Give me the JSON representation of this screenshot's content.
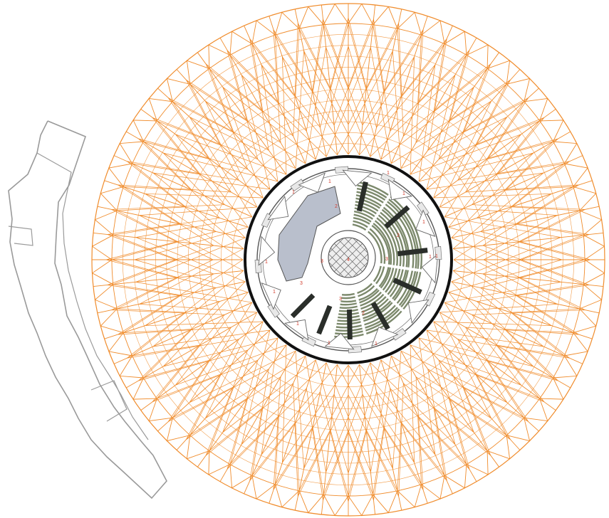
{
  "colors": {
    "background": "#ffffff",
    "lattice": "#f08c2c",
    "outline": "#9a9a9a",
    "inner_ring": "#111111",
    "hall_floor": "#b9bfcc",
    "seating": "#6e7c5c",
    "bars": "#2a2e2a",
    "label": "#d23a2a"
  },
  "lattice": {
    "spokes": 60,
    "concentric_rings": 12
  },
  "room_labels": [
    "1",
    "1",
    "1",
    "1",
    "1",
    "1",
    "1",
    "1",
    "1",
    "1",
    "1",
    "1",
    "2",
    "2",
    "2",
    "3",
    "3",
    "3",
    "3",
    "4"
  ]
}
